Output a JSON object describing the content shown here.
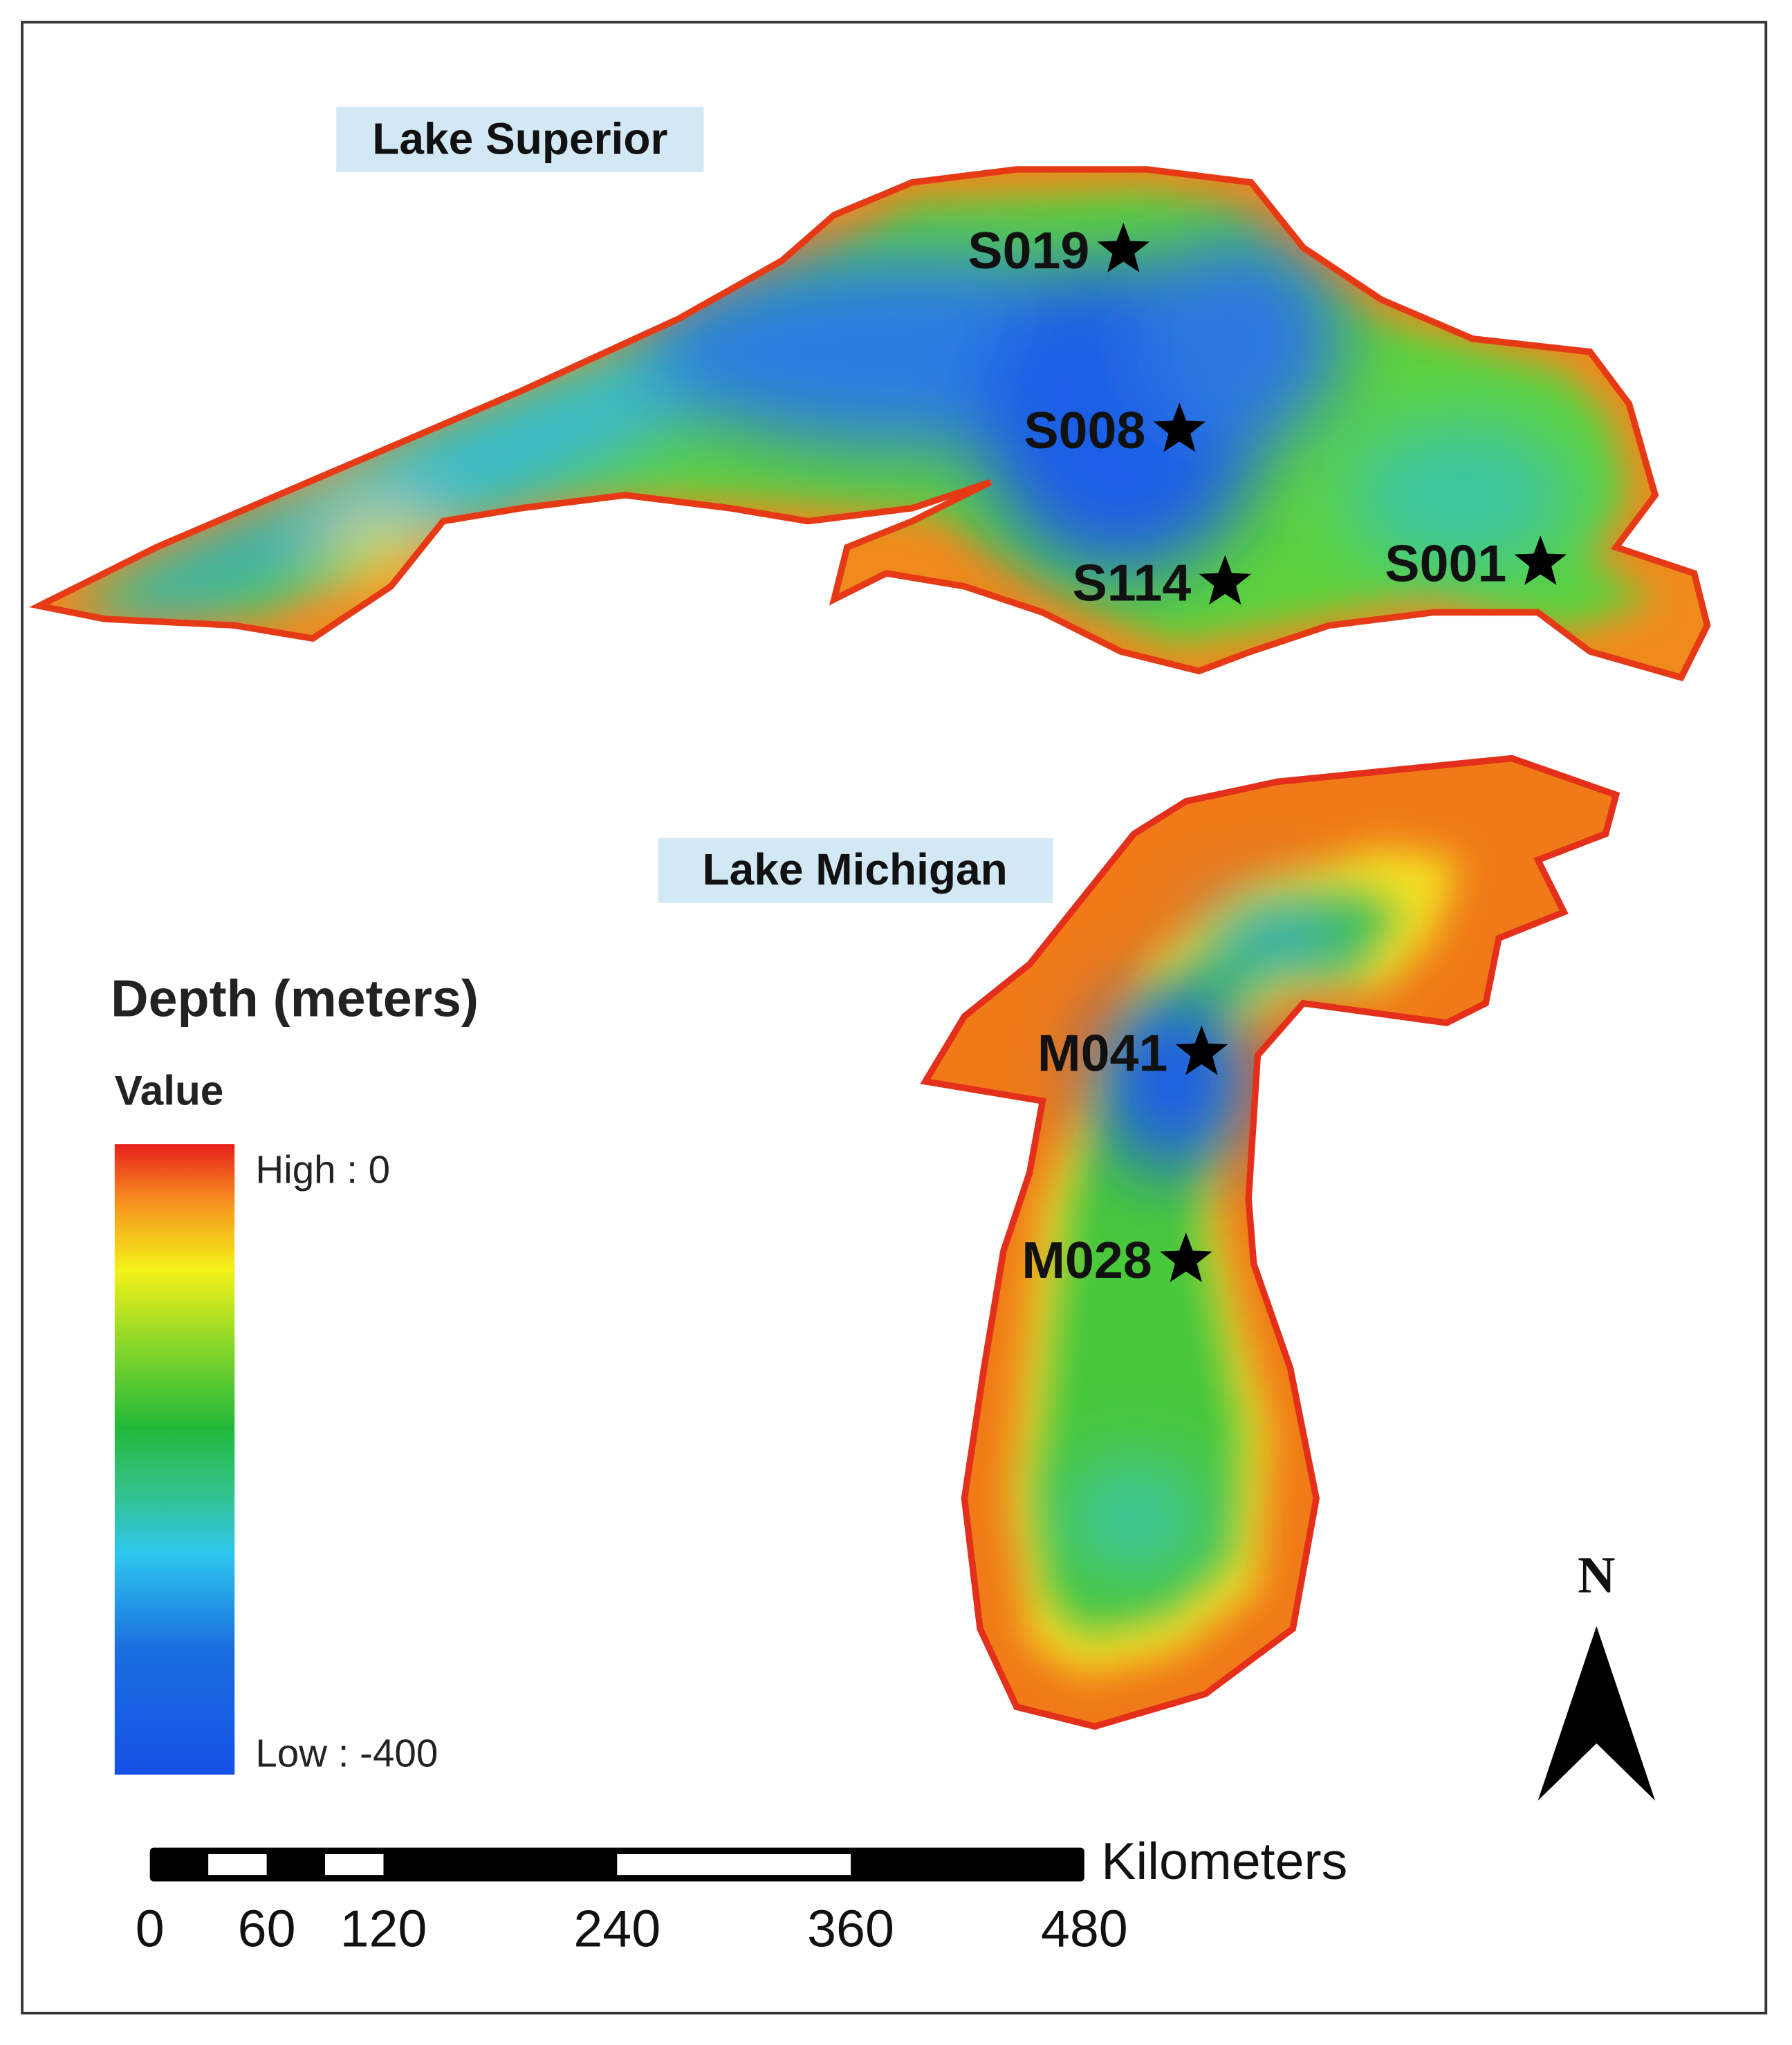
{
  "map": {
    "lakes": [
      {
        "name": "Lake Superior",
        "stations": [
          "S019",
          "S008",
          "S114",
          "S001"
        ]
      },
      {
        "name": "Lake Michigan",
        "stations": [
          "M041",
          "M028"
        ]
      }
    ],
    "legend": {
      "title": "Depth (meters)",
      "subtitle": "Value",
      "high": "High : 0",
      "low": "Low : -400"
    },
    "scale_bar": {
      "ticks": [
        0,
        60,
        120,
        240,
        360,
        480
      ],
      "unit": "Kilometers"
    },
    "north": "N"
  }
}
